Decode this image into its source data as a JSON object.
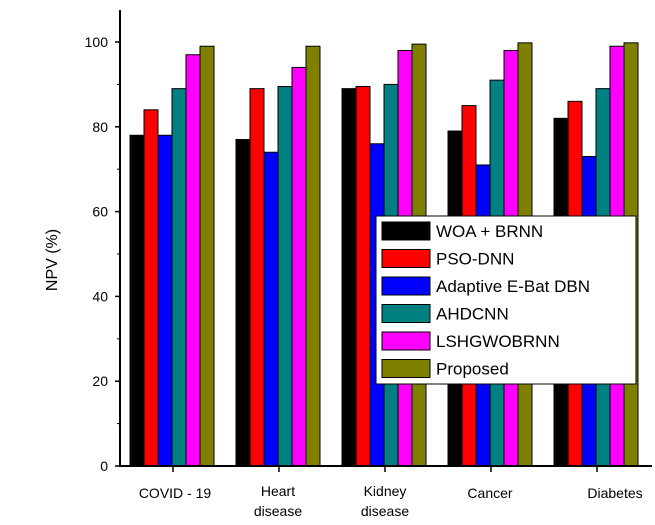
{
  "chart_data": {
    "type": "bar",
    "title": "",
    "xlabel": "",
    "ylabel": "NPV (%)",
    "ylim": [
      0,
      108
    ],
    "yticks": [
      0,
      20,
      40,
      60,
      80,
      100
    ],
    "grid": false,
    "legend_position": "center-right",
    "categories": [
      [
        "COVID - 19"
      ],
      [
        "Heart",
        "disease"
      ],
      [
        "Kidney",
        "disease"
      ],
      [
        "Cancer"
      ],
      [
        "Diabetes"
      ]
    ],
    "series": [
      {
        "name": "WOA + BRNN",
        "color": "#000000",
        "values": [
          78,
          77,
          89,
          79,
          82
        ]
      },
      {
        "name": "PSO-DNN",
        "color": "#ff0000",
        "values": [
          84,
          89,
          89.5,
          85,
          86
        ]
      },
      {
        "name": "Adaptive E-Bat DBN",
        "color": "#0000ff",
        "values": [
          78,
          74,
          76,
          71,
          73
        ]
      },
      {
        "name": "AHDCNN",
        "color": "#008080",
        "values": [
          89,
          89.5,
          90,
          91,
          89
        ]
      },
      {
        "name": "LSHGWOBRNN",
        "color": "#ff00ff",
        "values": [
          97,
          94,
          98,
          98,
          99
        ]
      },
      {
        "name": "Proposed",
        "color": "#808000",
        "values": [
          99,
          99,
          99.5,
          99.8,
          99.8
        ]
      }
    ]
  }
}
